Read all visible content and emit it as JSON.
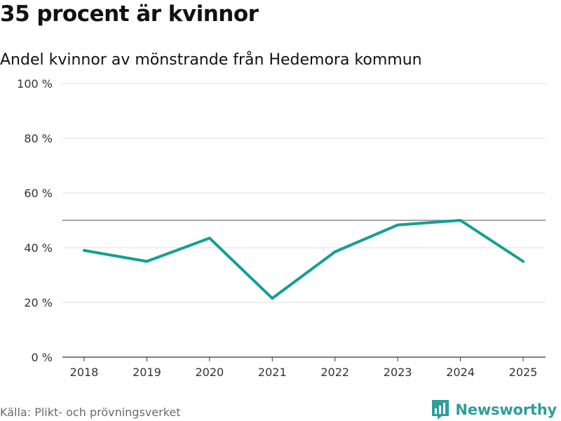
{
  "chart_data": {
    "type": "line",
    "title": "35 procent är kvinnor",
    "subtitle": "Andel kvinnor av mönstrande från Hedemora kommun",
    "x": [
      "2018",
      "2019",
      "2020",
      "2021",
      "2022",
      "2023",
      "2024",
      "2025"
    ],
    "series": [
      {
        "name": "Andel kvinnor",
        "values": [
          39,
          35,
          43.5,
          21.5,
          38.5,
          48.3,
          50,
          35
        ],
        "color": "#13a093"
      }
    ],
    "reference_line": {
      "value": 50,
      "color": "#8a8a8a"
    },
    "ylim": [
      0,
      100
    ],
    "yticks": [
      0,
      20,
      40,
      60,
      80,
      100
    ],
    "ytick_labels": [
      "0 %",
      "20 %",
      "40 %",
      "60 %",
      "80 %",
      "100 %"
    ],
    "xlabel": "",
    "ylabel": "",
    "grid": true
  },
  "footer": {
    "source": "Källa: Plikt- och prövningsverket",
    "brand": "Newsworthy",
    "brand_color": "#2e9e9a"
  }
}
